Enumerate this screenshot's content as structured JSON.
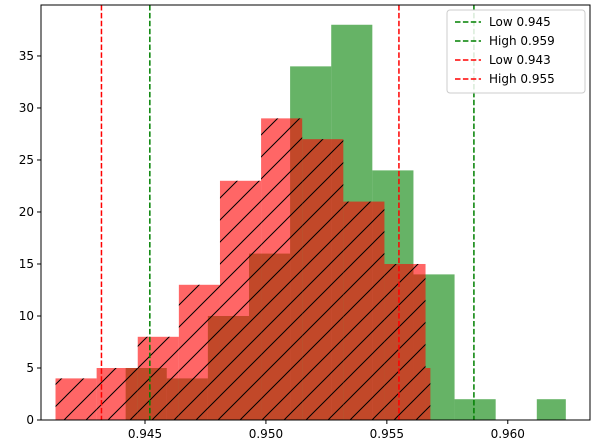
{
  "chart_data": {
    "type": "histogram",
    "title": "",
    "xlabel": "",
    "ylabel": "",
    "xlim": [
      0.9407,
      0.9634
    ],
    "ylim": [
      0,
      39.9
    ],
    "grid": false,
    "legend_position": "top-right",
    "x_ticks": [
      0.945,
      0.95,
      0.955,
      0.96
    ],
    "x_tick_labels": [
      "0.945",
      "0.950",
      "0.955",
      "0.960"
    ],
    "y_ticks": [
      0,
      5,
      10,
      15,
      20,
      25,
      30,
      35
    ],
    "y_tick_labels": [
      "0",
      "5",
      "10",
      "15",
      "20",
      "25",
      "30",
      "35"
    ],
    "series": [
      {
        "color": "#008000",
        "opacity": 0.6,
        "hatch": false,
        "bins": [
          {
            "x0": 0.9442,
            "x1": 0.9459,
            "count": 5
          },
          {
            "x0": 0.9459,
            "x1": 0.9476,
            "count": 4
          },
          {
            "x0": 0.9476,
            "x1": 0.9493,
            "count": 10
          },
          {
            "x0": 0.9493,
            "x1": 0.951,
            "count": 16
          },
          {
            "x0": 0.951,
            "x1": 0.9527,
            "count": 34
          },
          {
            "x0": 0.9527,
            "x1": 0.9544,
            "count": 38
          },
          {
            "x0": 0.9544,
            "x1": 0.9561,
            "count": 24
          },
          {
            "x0": 0.9561,
            "x1": 0.9578,
            "count": 14
          },
          {
            "x0": 0.9578,
            "x1": 0.9595,
            "count": 2
          },
          {
            "x0": 0.9595,
            "x1": 0.9612,
            "count": 0
          },
          {
            "x0": 0.9612,
            "x1": 0.9624,
            "count": 2
          }
        ]
      },
      {
        "color": "#ff0000",
        "opacity": 0.6,
        "hatch": true,
        "bins": [
          {
            "x0": 0.9413,
            "x1": 0.943,
            "count": 4
          },
          {
            "x0": 0.943,
            "x1": 0.9447,
            "count": 5
          },
          {
            "x0": 0.9447,
            "x1": 0.9464,
            "count": 8
          },
          {
            "x0": 0.9464,
            "x1": 0.9481,
            "count": 13
          },
          {
            "x0": 0.9481,
            "x1": 0.9498,
            "count": 23
          },
          {
            "x0": 0.9498,
            "x1": 0.9515,
            "count": 29
          },
          {
            "x0": 0.9515,
            "x1": 0.9532,
            "count": 27
          },
          {
            "x0": 0.9532,
            "x1": 0.9549,
            "count": 21
          },
          {
            "x0": 0.9549,
            "x1": 0.9566,
            "count": 15
          },
          {
            "x0": 0.9566,
            "x1": 0.9568,
            "count": 5
          }
        ]
      }
    ],
    "vlines": [
      {
        "label": "Low 0.945",
        "x": 0.9452,
        "color": "#008000"
      },
      {
        "label": "High 0.959",
        "x": 0.9586,
        "color": "#008000"
      },
      {
        "label": "Low 0.943",
        "x": 0.9432,
        "color": "#ff0000"
      },
      {
        "label": "High 0.955",
        "x": 0.9555,
        "color": "#ff0000"
      }
    ]
  }
}
